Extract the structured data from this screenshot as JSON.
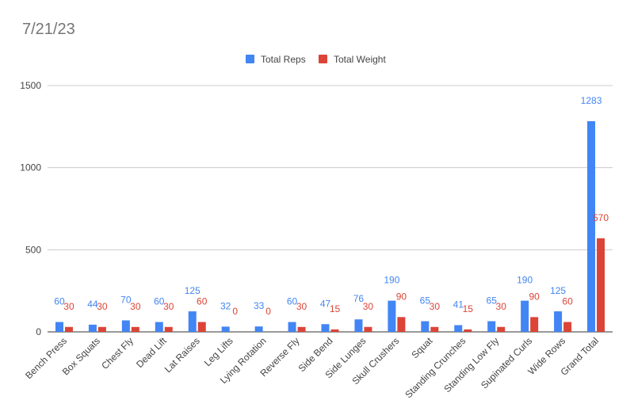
{
  "chart_data": {
    "type": "bar",
    "title": "7/21/23",
    "xlabel": "",
    "ylabel": "",
    "ylim": [
      0,
      1500
    ],
    "yticks": [
      0,
      500,
      1000,
      1500
    ],
    "grid": true,
    "legend_position": "top",
    "categories": [
      "Bench Press",
      "Box Squats",
      "Chest Fly",
      "Dead Lift",
      "Lat Raises",
      "Leg Lifts",
      "Lying Rotation",
      "Reverse Fly",
      "Side Bend",
      "Side Lunges",
      "Skull Crushers",
      "Squat",
      "Standing Crunches",
      "Standing Low Fly",
      "Supinated Curls",
      "Wide Rows",
      "Grand Total"
    ],
    "series": [
      {
        "name": "Total Reps",
        "color": "#4285f4",
        "values": [
          60,
          44,
          70,
          60,
          125,
          32,
          33,
          60,
          47,
          76,
          190,
          65,
          41,
          65,
          190,
          125,
          1283
        ]
      },
      {
        "name": "Total Weight",
        "color": "#db4437",
        "values": [
          30,
          30,
          30,
          30,
          60,
          0,
          0,
          30,
          15,
          30,
          90,
          30,
          15,
          30,
          90,
          60,
          570
        ]
      }
    ]
  }
}
